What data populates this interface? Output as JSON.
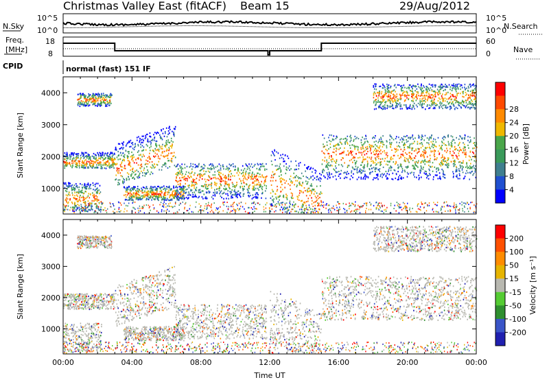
{
  "header": {
    "title": "Christmas Valley East (fitACF)",
    "beam": "Beam 15",
    "date": "29/Aug/2012"
  },
  "strips": {
    "nsky_label": "N.Sky",
    "nsky_ticks": [
      "10^5",
      "10^0"
    ],
    "nsearch_label": "N.Search",
    "nsearch_ticks": [
      "10^5",
      "10^0"
    ],
    "freq_label_1": "Freq.",
    "freq_label_2": "[MHz]",
    "freq_ticks": [
      18,
      8
    ],
    "nave_label": "Nave",
    "nave_ticks": [
      60,
      0
    ],
    "cpid_label": "CPID",
    "cpid_value": "normal (fast) 151 IF"
  },
  "colors": {
    "power_scale": [
      "#0000ff",
      "#2050d0",
      "#3f7f8f",
      "#3a9a5a",
      "#4aa64a",
      "#f0b800",
      "#ff8a00",
      "#ff4a00",
      "#ff0000"
    ],
    "velocity_scale": [
      "#2020b0",
      "#3a55c8",
      "#2f8f2f",
      "#55cc33",
      "#b8b8b0",
      "#e6b400",
      "#ff8c00",
      "#ff5000",
      "#ff0000"
    ]
  },
  "chart_data": [
    {
      "type": "heatmap",
      "name": "power-panel",
      "ylabel": "Slant Range [km]",
      "xlabel": "",
      "x_ticks": [
        "00:00",
        "04:00",
        "08:00",
        "12:00",
        "16:00",
        "20:00",
        "00:00"
      ],
      "y_ticks": [
        1000,
        2000,
        3000,
        4000
      ],
      "ylim": [
        200,
        4500
      ],
      "colorbar": {
        "label": "Power [dB]",
        "ticks": [
          4,
          8,
          12,
          16,
          20,
          24,
          28
        ]
      }
    },
    {
      "type": "heatmap",
      "name": "velocity-panel",
      "ylabel": "Slant Range [km]",
      "xlabel": "Time UT",
      "x_ticks": [
        "00:00",
        "04:00",
        "08:00",
        "12:00",
        "16:00",
        "20:00",
        "00:00"
      ],
      "y_ticks": [
        1000,
        2000,
        3000,
        4000
      ],
      "ylim": [
        200,
        4500
      ],
      "colorbar": {
        "label": "Velocity [m s⁻¹]",
        "ticks": [
          200,
          100,
          50,
          15,
          -15,
          -50,
          -100,
          -200
        ]
      }
    }
  ]
}
